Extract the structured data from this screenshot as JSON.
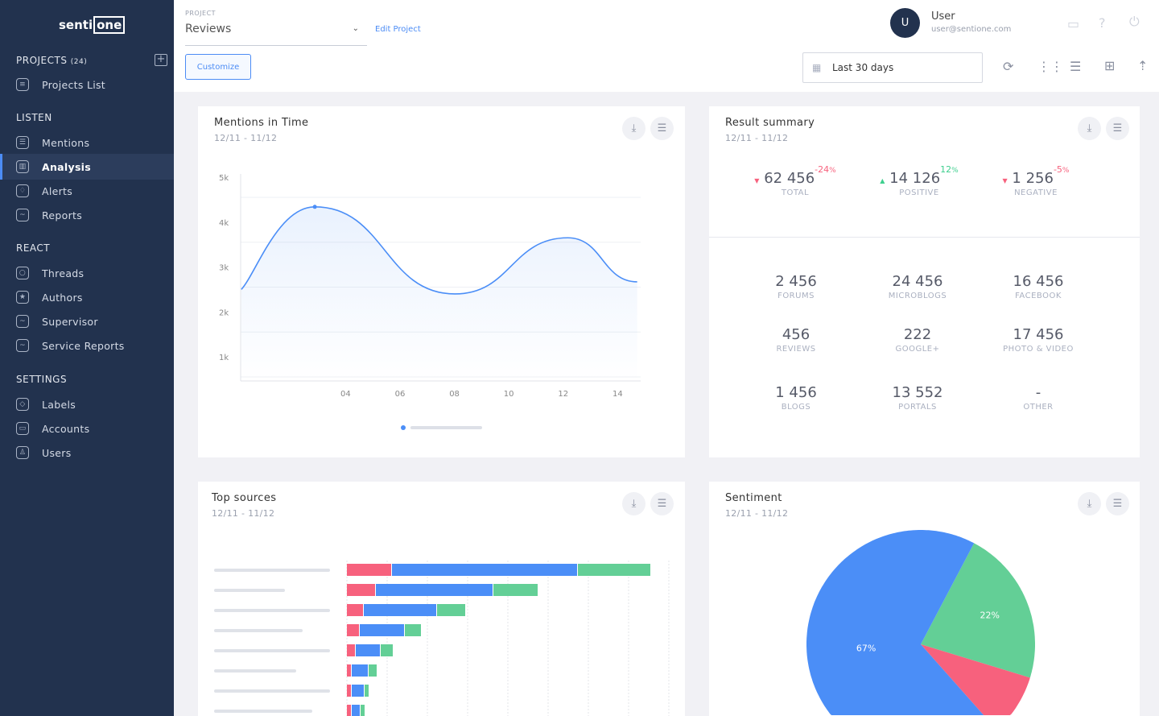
{
  "brand": {
    "left": "senti",
    "right": "one"
  },
  "sidebar": {
    "projects_label": "PROJECTS",
    "projects_count": "(24)",
    "sections": [
      {
        "title": "LISTEN",
        "items": [
          "Mentions",
          "Analysis",
          "Alerts",
          "Reports"
        ]
      },
      {
        "title": "REACT",
        "items": [
          "Threads",
          "Authors",
          "Supervisor",
          "Service Reports"
        ]
      },
      {
        "title": "SETTINGS",
        "items": [
          "Labels",
          "Accounts",
          "Users"
        ]
      }
    ],
    "projects_list": "Projects List",
    "active": "Analysis"
  },
  "header": {
    "project_label": "PROJECT",
    "project_value": "Reviews",
    "edit": "Edit Project",
    "customize": "Customize",
    "user_initial": "U",
    "user_name": "User",
    "user_email": "user@sentione.com",
    "date_range": "Last 30 days"
  },
  "mentions": {
    "title": "Mentions in Time",
    "date": "12/11  - 11/12"
  },
  "summary": {
    "title": "Result summary",
    "date": "12/11  - 11/12",
    "top": [
      {
        "value": "62 456",
        "label": "TOTAL",
        "change": "-24",
        "unit": "%",
        "dir": "down"
      },
      {
        "value": "14 126",
        "label": "POSITIVE",
        "change": "12",
        "unit": "%",
        "dir": "up"
      },
      {
        "value": "1 256",
        "label": "NEGATIVE",
        "change": "-5",
        "unit": "%",
        "dir": "down"
      }
    ],
    "grid": [
      {
        "value": "2 456",
        "label": "FORUMS"
      },
      {
        "value": "24 456",
        "label": "MICROBLOGS"
      },
      {
        "value": "16 456",
        "label": "FACEBOOK"
      },
      {
        "value": "456",
        "label": "REVIEWS"
      },
      {
        "value": "222",
        "label": "GOOGLE+"
      },
      {
        "value": "17 456",
        "label": "PHOTO & VIDEO"
      },
      {
        "value": "1 456",
        "label": "BLOGS"
      },
      {
        "value": "13 552",
        "label": "PORTALS"
      },
      {
        "value": "-",
        "label": "OTHER"
      }
    ]
  },
  "sources": {
    "title": "Top sources",
    "date": "12/11  - 11/12"
  },
  "sentiment": {
    "title": "Sentiment",
    "date": "12/11  - 11/12"
  },
  "colors": {
    "blue": "#4b8ef7",
    "green": "#63cf96",
    "pink": "#f7617d",
    "navy": "#22324e"
  },
  "chart_data": [
    {
      "type": "line",
      "title": "Mentions in Time",
      "y_ticks": [
        "5k",
        "4k",
        "3k",
        "2k",
        "1k"
      ],
      "x_ticks": [
        "04",
        "06",
        "08",
        "10",
        "12",
        "14"
      ],
      "ylim": [
        0,
        5000
      ],
      "x": [
        0.15,
        2.85,
        8,
        12.15,
        14.7
      ],
      "y": [
        2500,
        4340,
        2400,
        3650,
        2670
      ]
    },
    {
      "type": "bar",
      "orientation": "horizontal",
      "stacked": true,
      "title": "Top sources",
      "series": [
        {
          "color": "#f7617d",
          "values": [
            11,
            7,
            4,
            3,
            2,
            1,
            1,
            1
          ]
        },
        {
          "color": "#4b8ef7",
          "values": [
            46,
            29,
            18,
            11,
            6,
            4,
            3,
            2
          ]
        },
        {
          "color": "#63cf96",
          "values": [
            18,
            11,
            7,
            4,
            3,
            2,
            1,
            1
          ]
        }
      ]
    },
    {
      "type": "pie",
      "title": "Sentiment",
      "slices": [
        {
          "label": "22%",
          "value": 22,
          "color": "#63cf96"
        },
        {
          "label": "",
          "value": 11,
          "color": "#f7617d"
        },
        {
          "label": "67%",
          "value": 67,
          "color": "#4b8ef7"
        }
      ]
    }
  ]
}
